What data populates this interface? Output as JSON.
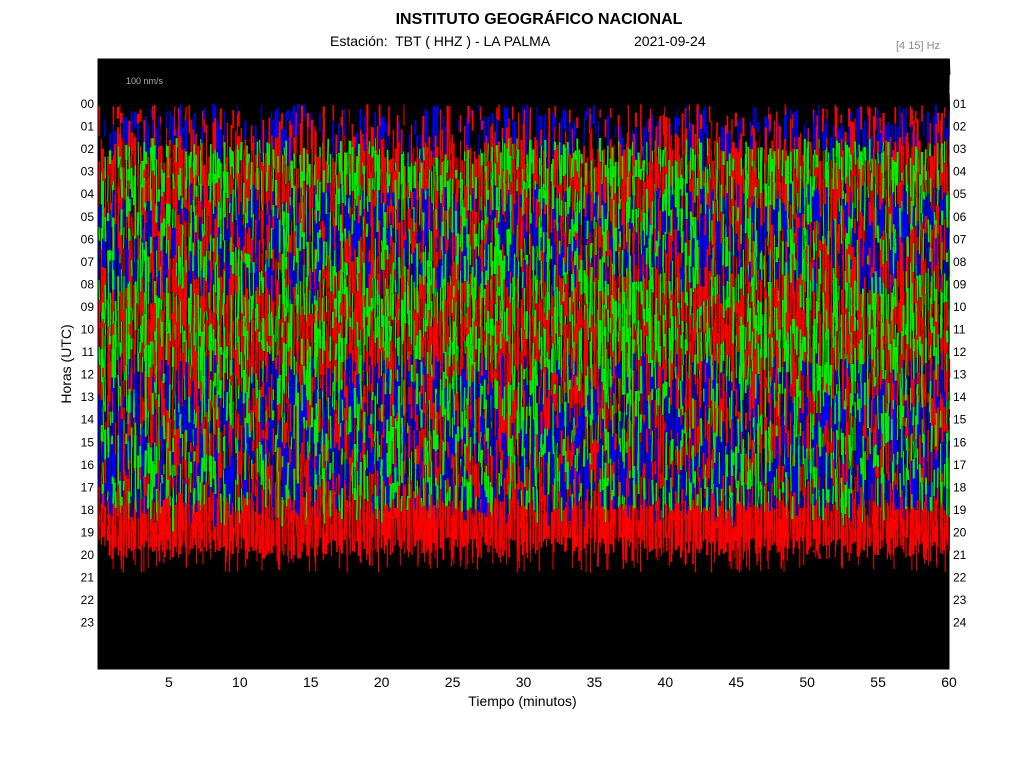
{
  "header": {
    "title": "INSTITUTO GEOGRÁFICO NACIONAL",
    "station": "Estación:  TBT ( HHZ ) - LA PALMA",
    "date": "2021-09-24",
    "band": "[4 15] Hz"
  },
  "chart_data": {
    "type": "helicorder",
    "title": "INSTITUTO GEOGRÁFICO NACIONAL",
    "xlabel": "Tiempo (minutos)",
    "ylabel": "Horas (UTC)",
    "xlim": [
      0,
      60
    ],
    "x_ticks": [
      5,
      10,
      15,
      20,
      25,
      30,
      35,
      40,
      45,
      50,
      55,
      60
    ],
    "left_hour_labels": [
      "00",
      "01",
      "02",
      "03",
      "04",
      "05",
      "06",
      "07",
      "08",
      "09",
      "10",
      "11",
      "12",
      "13",
      "14",
      "15",
      "16",
      "17",
      "18",
      "19",
      "20",
      "21",
      "22",
      "23"
    ],
    "right_hour_labels": [
      "01",
      "02",
      "03",
      "04",
      "05",
      "06",
      "07",
      "08",
      "09",
      "10",
      "11",
      "12",
      "13",
      "14",
      "15",
      "16",
      "17",
      "18",
      "19",
      "20",
      "21",
      "22",
      "23",
      "24"
    ],
    "scale_label": "100 nm/s",
    "trace_colors": [
      "#000000",
      "#ff0000",
      "#0000ff",
      "#00ee00"
    ],
    "background_color": "#000000",
    "bands": [
      {
        "hour_start": 0,
        "hour_end": 1.5,
        "dominant_colors": [
          "#0000ff",
          "#ff0000",
          "#000000"
        ]
      },
      {
        "hour_start": 1.5,
        "hour_end": 3.5,
        "dominant_colors": [
          "#ff0000",
          "#00ee00"
        ]
      },
      {
        "hour_start": 3.5,
        "hour_end": 7.5,
        "dominant_colors": [
          "#0000ff",
          "#00ee00",
          "#ff0000"
        ]
      },
      {
        "hour_start": 7.5,
        "hour_end": 9,
        "dominant_colors": [
          "#00ee00",
          "#ff0000"
        ]
      },
      {
        "hour_start": 9,
        "hour_end": 11,
        "dominant_colors": [
          "#ff0000",
          "#00ee00"
        ]
      },
      {
        "hour_start": 11,
        "hour_end": 15.5,
        "dominant_colors": [
          "#0000ff",
          "#00ee00",
          "#ff0000"
        ]
      },
      {
        "hour_start": 15.5,
        "hour_end": 17.5,
        "dominant_colors": [
          "#00ee00",
          "#0000ff",
          "#ff0000"
        ]
      },
      {
        "hour_start": 17.5,
        "hour_end": 19.2,
        "dominant_colors": [
          "#ff0000"
        ]
      }
    ],
    "data_end_hour": 19.2
  }
}
